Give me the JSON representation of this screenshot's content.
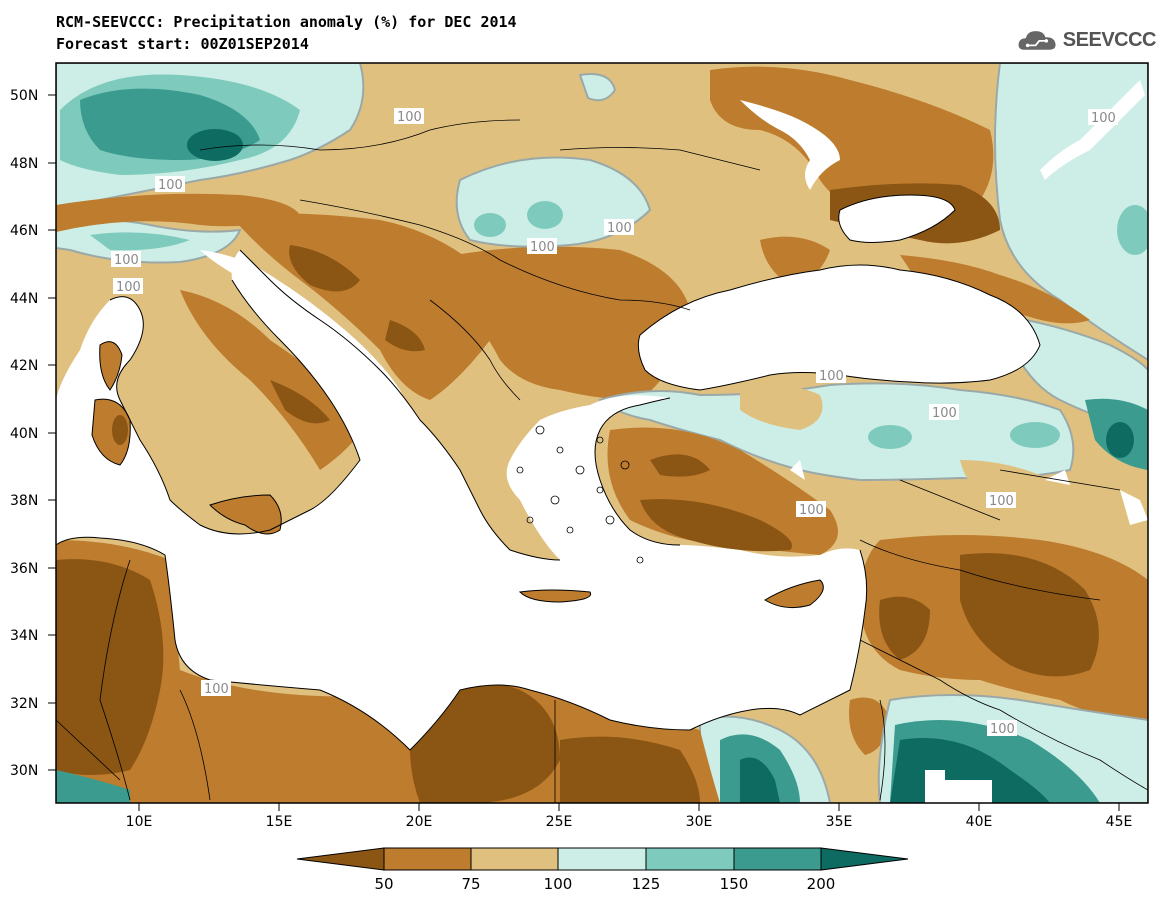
{
  "title": "RCM-SEEVCCC: Precipitation anomaly (%) for DEC 2014",
  "subtitle": "Forecast start: 00Z01SEP2014",
  "logo": {
    "text": "SEEVCCC",
    "icon": "cloud-icon"
  },
  "map": {
    "lat_labels": [
      "50N",
      "48N",
      "46N",
      "44N",
      "42N",
      "40N",
      "38N",
      "36N",
      "34N",
      "32N",
      "30N"
    ],
    "lon_labels": [
      "10E",
      "15E",
      "20E",
      "25E",
      "30E",
      "35E",
      "40E",
      "45E"
    ],
    "contour_label": "100"
  },
  "colorbar": {
    "ticks": [
      "50",
      "75",
      "100",
      "125",
      "150",
      "200"
    ],
    "colors": [
      "#8b5514",
      "#bd7c2e",
      "#e0c07f",
      "#cdeee6",
      "#7ecbbd",
      "#3a9b8e",
      "#0d6b62"
    ]
  }
}
